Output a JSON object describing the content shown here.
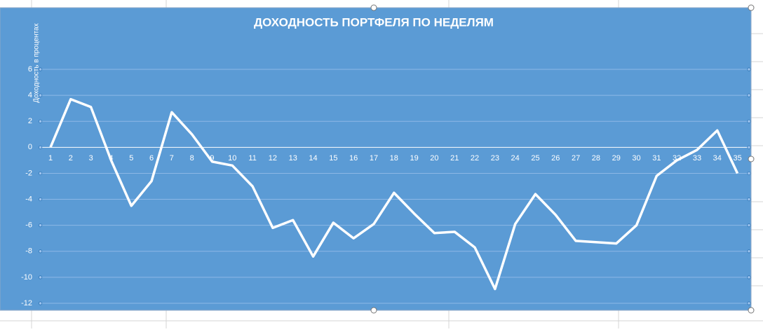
{
  "chart_data": {
    "type": "line",
    "title": "ДОХОДНОСТЬ ПОРТФЕЛЯ ПО НЕДЕЛЯМ",
    "y_label": "Доходность в процентах",
    "categories": [
      "1",
      "2",
      "3",
      "4",
      "5",
      "6",
      "7",
      "8",
      "9",
      "10",
      "11",
      "12",
      "13",
      "14",
      "15",
      "16",
      "17",
      "18",
      "19",
      "20",
      "21",
      "22",
      "23",
      "24",
      "25",
      "26",
      "27",
      "28",
      "29",
      "30",
      "31",
      "32",
      "33",
      "34",
      "35"
    ],
    "series": [
      {
        "name": "Доходность",
        "color": "#ffffff",
        "values": [
          0,
          3.7,
          3.1,
          -1.0,
          -4.5,
          -2.6,
          2.7,
          1.0,
          -1.1,
          -1.4,
          -3.0,
          -6.2,
          -5.6,
          -8.4,
          -5.8,
          -7.0,
          -5.9,
          -3.5,
          -5.1,
          -6.6,
          -6.5,
          -7.7,
          -10.9,
          -5.9,
          -3.6,
          -5.2,
          -7.2,
          -7.3,
          -7.4,
          -6.0,
          -2.2,
          -1.0,
          -0.2,
          1.3,
          -2.0
        ]
      }
    ],
    "ylim": [
      -12,
      6
    ],
    "yticks": [
      -12,
      -10,
      -8,
      -6,
      -4,
      -2,
      0,
      2,
      4,
      6
    ],
    "grid": true
  }
}
